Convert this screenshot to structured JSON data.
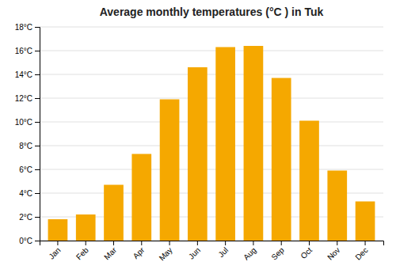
{
  "chart_data": {
    "type": "bar",
    "title": "Average monthly temperatures (°C ) in Tuk",
    "categories": [
      "Jan",
      "Feb",
      "Mar",
      "Apr",
      "May",
      "Jun",
      "Jul",
      "Aug",
      "Sep",
      "Oct",
      "Nov",
      "Dec"
    ],
    "values": [
      1.8,
      2.2,
      4.7,
      7.3,
      11.9,
      14.6,
      16.3,
      16.4,
      13.7,
      10.1,
      5.9,
      3.3
    ],
    "color": "#F5A800",
    "ylim": [
      0,
      18
    ],
    "yticks": [
      {
        "value": 0,
        "label": "0°C"
      },
      {
        "value": 2,
        "label": "2°C"
      },
      {
        "value": 4,
        "label": "4°C"
      },
      {
        "value": 6,
        "label": "6°C"
      },
      {
        "value": 8,
        "label": "8°C"
      },
      {
        "value": 10,
        "label": "10°C"
      },
      {
        "value": 12,
        "label": "12°C"
      },
      {
        "value": 14,
        "label": "14°C"
      },
      {
        "value": 16,
        "label": "16°C"
      },
      {
        "value": 18,
        "label": "18°C"
      }
    ],
    "grid": true
  }
}
